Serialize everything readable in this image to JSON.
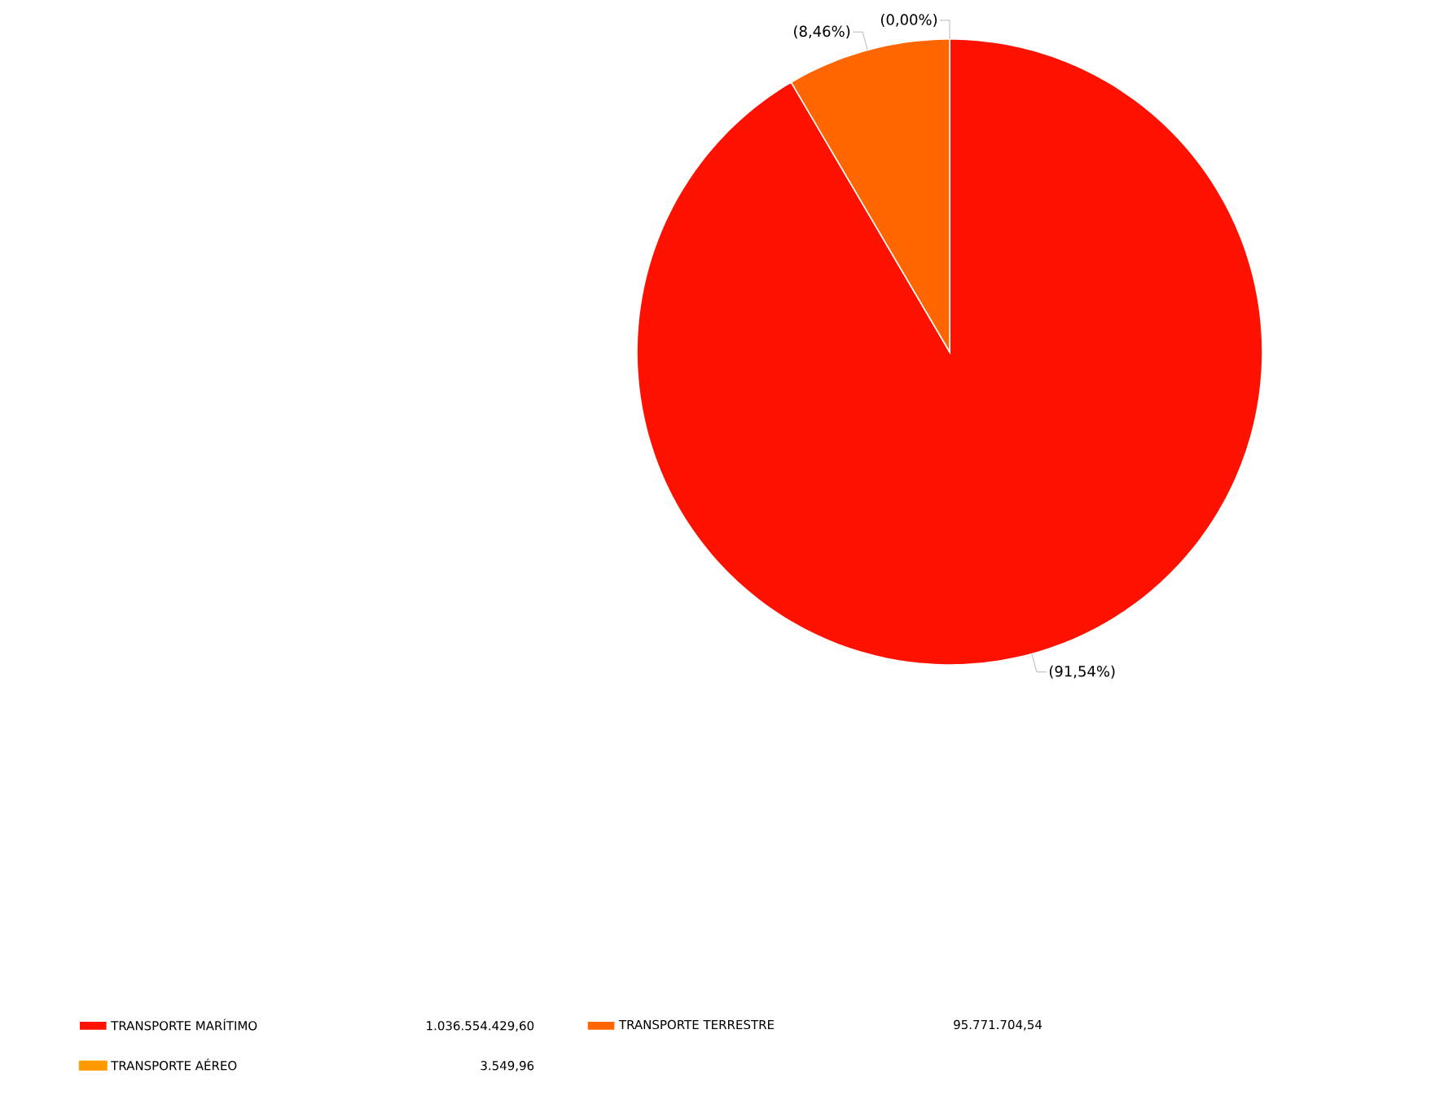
{
  "chart_data": {
    "type": "pie",
    "categories": [
      "TRANSPORTE MARÍTIMO",
      "TRANSPORTE TERRESTRE",
      "TRANSPORTE AÉREO"
    ],
    "values": [
      91.54,
      8.46,
      0.0
    ],
    "colors": [
      "#ff1100",
      "#ff6600",
      "#ff9900"
    ],
    "value_labels": [
      "(91,54%)",
      "(8,46%)",
      "(0,00%)"
    ],
    "annotations": [
      "1.036.554.429,60",
      "95.771.704,54",
      "3.549,96"
    ],
    "legend": "bottom"
  }
}
